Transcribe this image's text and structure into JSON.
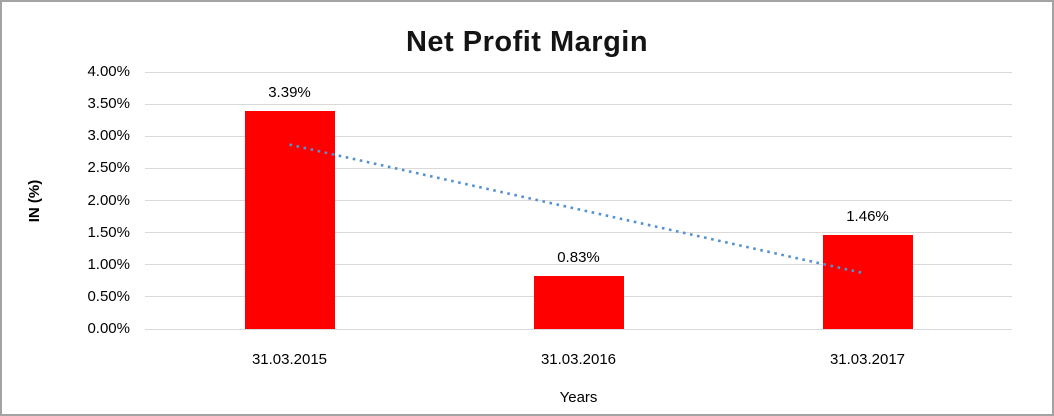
{
  "chart": {
    "title": "Net Profit Margin",
    "ylabel": "IN (%)",
    "xlabel": "Years"
  },
  "chart_data": {
    "type": "bar",
    "title": "Net Profit Margin",
    "xlabel": "Years",
    "ylabel": "IN (%)",
    "categories": [
      "31.03.2015",
      "31.03.2016",
      "31.03.2017"
    ],
    "values": [
      3.39,
      0.83,
      1.46
    ],
    "data_labels": [
      "3.39%",
      "0.83%",
      "1.46%"
    ],
    "ylim": [
      0,
      4
    ],
    "ytick_step": 0.5,
    "ytick_labels": [
      "0.00%",
      "0.50%",
      "1.00%",
      "1.50%",
      "2.00%",
      "2.50%",
      "3.00%",
      "3.50%",
      "4.00%"
    ],
    "grid": true,
    "legend": "none",
    "colors": {
      "bar": "#ff0000",
      "gridline": "#d9d9d9",
      "trendline": "#5591cf",
      "text": "#000000"
    },
    "trendline": {
      "style": "dotted",
      "color": "#5591cf",
      "start": {
        "category_index": 0,
        "value": 2.87
      },
      "end": {
        "category_index": 2,
        "value": 0.87
      }
    }
  }
}
